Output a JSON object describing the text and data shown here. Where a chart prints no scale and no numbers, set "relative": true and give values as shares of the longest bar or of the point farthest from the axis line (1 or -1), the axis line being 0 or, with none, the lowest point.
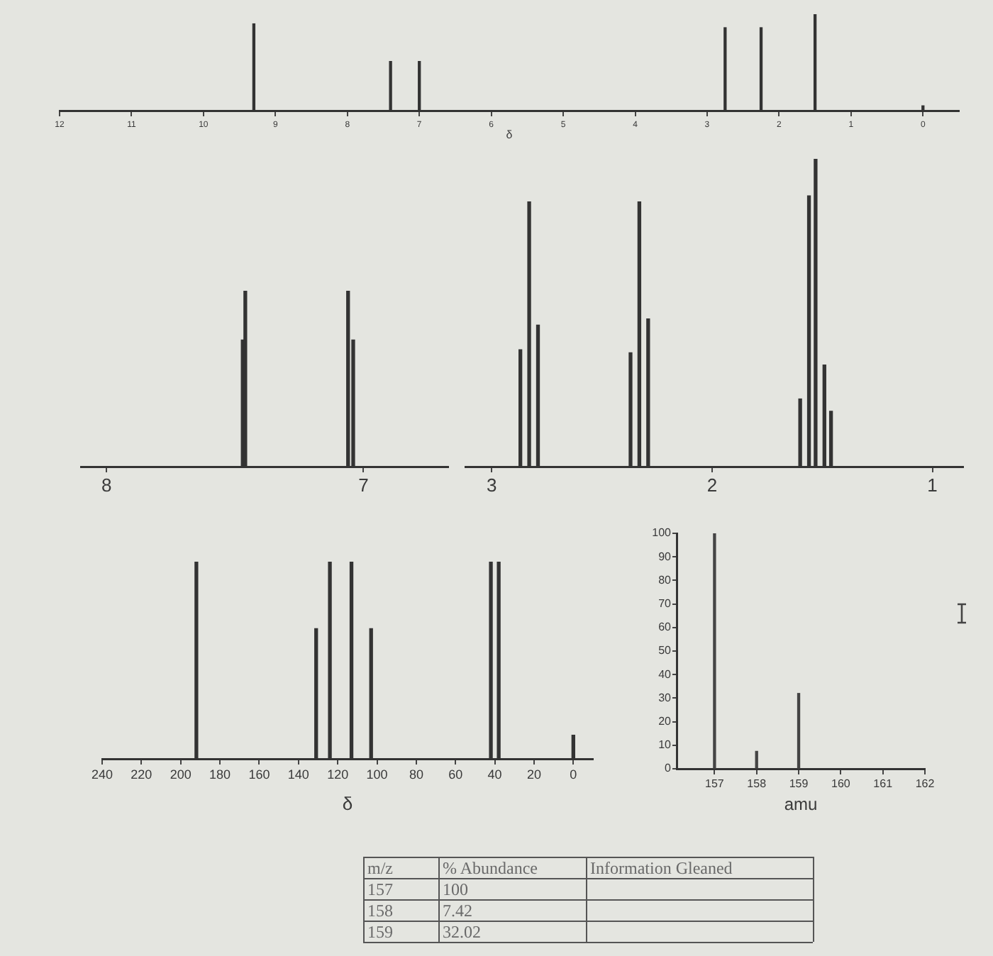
{
  "chart_data": [
    {
      "type": "bar",
      "relative": true,
      "x": [
        9.3,
        7.4,
        7.0,
        2.75,
        2.25,
        1.5,
        0
      ],
      "values": [
        0.9,
        0.51,
        0.51,
        0.86,
        0.86,
        1,
        0.05
      ],
      "color": "#333333",
      "xlim": [
        12,
        -0.5
      ],
      "xticks": [
        12,
        11,
        10,
        9,
        8,
        7,
        6,
        5,
        4,
        3,
        2,
        1,
        0
      ],
      "xlabel": "δ"
    },
    {
      "type": "bar",
      "relative": true,
      "x": [
        7.47,
        7.46,
        7.06,
        7.04
      ],
      "values": [
        0.72,
        1,
        1,
        0.72
      ],
      "color": "#333333",
      "xlim": [
        8.1,
        6.67
      ],
      "xticks": [
        8,
        7
      ]
    },
    {
      "type": "bar",
      "relative": true,
      "x": [
        2.87,
        2.83,
        2.79,
        2.37,
        2.33,
        2.29,
        1.6,
        1.56,
        1.53,
        1.49,
        1.46
      ],
      "values": [
        0.38,
        0.86,
        0.46,
        0.37,
        0.86,
        0.48,
        0.22,
        0.88,
        1,
        0.33,
        0.18
      ],
      "color": "#333333",
      "xlim": [
        3.12,
        0.86
      ],
      "xticks": [
        3,
        2,
        1
      ]
    },
    {
      "type": "bar",
      "relative": true,
      "x": [
        192,
        131,
        124,
        113,
        103,
        42,
        38,
        0
      ],
      "values": [
        1,
        0.66,
        1,
        1,
        0.66,
        1,
        1,
        0.12
      ],
      "color": "#333333",
      "xlim": [
        240,
        -10
      ],
      "xticks": [
        240,
        220,
        200,
        180,
        160,
        140,
        120,
        100,
        80,
        60,
        40,
        20,
        0
      ],
      "xlabel": "δ"
    },
    {
      "type": "bar",
      "x": [
        157,
        158,
        159
      ],
      "values": [
        100,
        7.4,
        32
      ],
      "color": "#444444",
      "xlim": [
        156.1,
        162
      ],
      "xticks": [
        157,
        158,
        159,
        160,
        161,
        162
      ],
      "ylim": [
        0,
        100
      ],
      "yticks": [
        0,
        10,
        20,
        30,
        40,
        50,
        60,
        70,
        80,
        90,
        100
      ],
      "xlabel": "amu"
    },
    {
      "type": "other",
      "annotations": [
        "m/z",
        "% Abundance",
        "Information Gleaned",
        "157",
        "100",
        "158",
        "7.42",
        "159",
        "32.02"
      ]
    }
  ]
}
